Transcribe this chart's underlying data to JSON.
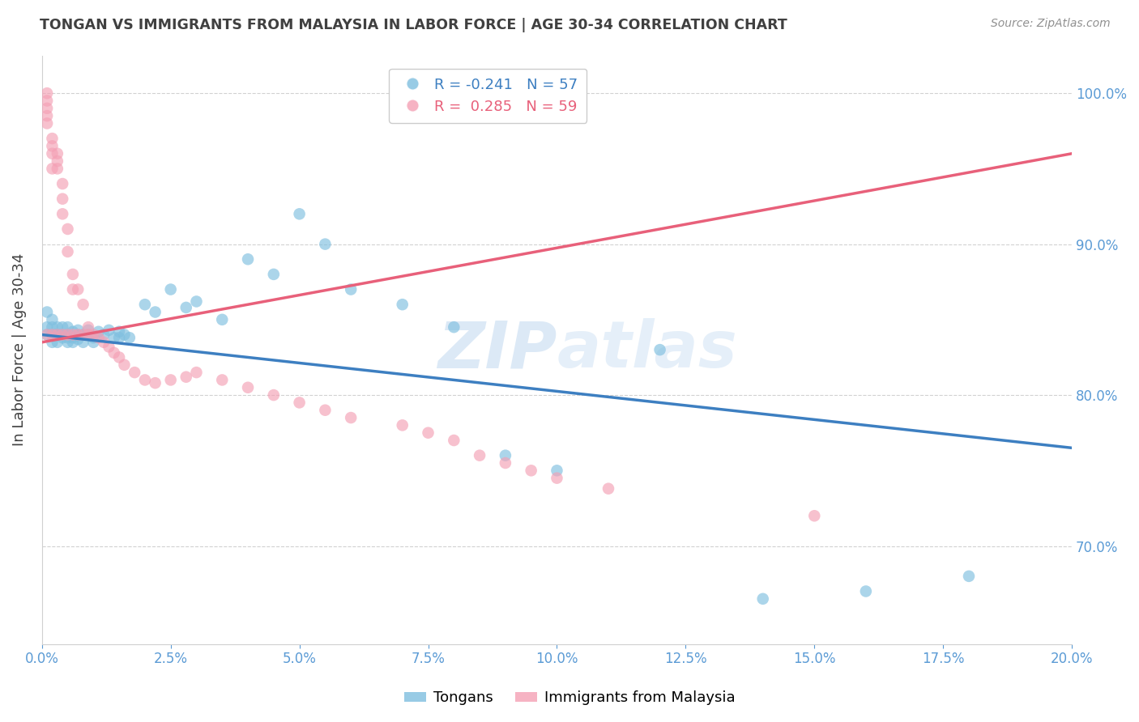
{
  "title": "TONGAN VS IMMIGRANTS FROM MALAYSIA IN LABOR FORCE | AGE 30-34 CORRELATION CHART",
  "source": "Source: ZipAtlas.com",
  "ylabel": "In Labor Force | Age 30-34",
  "legend_labels": [
    "Tongans",
    "Immigrants from Malaysia"
  ],
  "blue_R": -0.241,
  "blue_N": 57,
  "pink_R": 0.285,
  "pink_N": 59,
  "blue_color": "#7fbfdf",
  "pink_color": "#f4a0b5",
  "blue_line_color": "#3d7fc1",
  "pink_line_color": "#e8607a",
  "xmin": 0.0,
  "xmax": 0.2,
  "ymin": 0.635,
  "ymax": 1.025,
  "yticks": [
    0.7,
    0.8,
    0.9,
    1.0
  ],
  "xticks": [
    0.0,
    0.025,
    0.05,
    0.075,
    0.1,
    0.125,
    0.15,
    0.175,
    0.2
  ],
  "blue_scatter_x": [
    0.001,
    0.001,
    0.001,
    0.002,
    0.002,
    0.002,
    0.002,
    0.003,
    0.003,
    0.003,
    0.003,
    0.004,
    0.004,
    0.004,
    0.005,
    0.005,
    0.005,
    0.005,
    0.006,
    0.006,
    0.006,
    0.007,
    0.007,
    0.007,
    0.008,
    0.008,
    0.009,
    0.009,
    0.01,
    0.01,
    0.011,
    0.012,
    0.013,
    0.014,
    0.015,
    0.015,
    0.016,
    0.017,
    0.02,
    0.022,
    0.025,
    0.028,
    0.03,
    0.035,
    0.04,
    0.045,
    0.05,
    0.055,
    0.06,
    0.07,
    0.08,
    0.09,
    0.1,
    0.12,
    0.14,
    0.16,
    0.18
  ],
  "blue_scatter_y": [
    0.84,
    0.845,
    0.855,
    0.84,
    0.845,
    0.85,
    0.835,
    0.84,
    0.845,
    0.84,
    0.835,
    0.84,
    0.845,
    0.838,
    0.84,
    0.845,
    0.835,
    0.838,
    0.842,
    0.838,
    0.835,
    0.84,
    0.843,
    0.837,
    0.84,
    0.835,
    0.84,
    0.843,
    0.838,
    0.835,
    0.842,
    0.84,
    0.843,
    0.838,
    0.842,
    0.838,
    0.84,
    0.838,
    0.86,
    0.855,
    0.87,
    0.858,
    0.862,
    0.85,
    0.89,
    0.88,
    0.92,
    0.9,
    0.87,
    0.86,
    0.845,
    0.76,
    0.75,
    0.83,
    0.665,
    0.67,
    0.68
  ],
  "pink_scatter_x": [
    0.001,
    0.001,
    0.001,
    0.001,
    0.001,
    0.001,
    0.002,
    0.002,
    0.002,
    0.002,
    0.002,
    0.003,
    0.003,
    0.003,
    0.003,
    0.004,
    0.004,
    0.004,
    0.004,
    0.005,
    0.005,
    0.005,
    0.006,
    0.006,
    0.006,
    0.007,
    0.007,
    0.008,
    0.008,
    0.009,
    0.009,
    0.01,
    0.011,
    0.012,
    0.013,
    0.014,
    0.015,
    0.016,
    0.018,
    0.02,
    0.022,
    0.025,
    0.028,
    0.03,
    0.035,
    0.04,
    0.045,
    0.05,
    0.055,
    0.06,
    0.07,
    0.075,
    0.08,
    0.085,
    0.09,
    0.095,
    0.1,
    0.11,
    0.15
  ],
  "pink_scatter_y": [
    1.0,
    0.995,
    0.99,
    0.985,
    0.98,
    0.84,
    0.97,
    0.965,
    0.96,
    0.95,
    0.84,
    0.96,
    0.955,
    0.95,
    0.84,
    0.94,
    0.93,
    0.92,
    0.84,
    0.91,
    0.895,
    0.84,
    0.88,
    0.87,
    0.84,
    0.87,
    0.84,
    0.86,
    0.84,
    0.845,
    0.84,
    0.84,
    0.838,
    0.835,
    0.832,
    0.828,
    0.825,
    0.82,
    0.815,
    0.81,
    0.808,
    0.81,
    0.812,
    0.815,
    0.81,
    0.805,
    0.8,
    0.795,
    0.79,
    0.785,
    0.78,
    0.775,
    0.77,
    0.76,
    0.755,
    0.75,
    0.745,
    0.738,
    0.72
  ],
  "background_color": "#ffffff",
  "grid_color": "#cccccc",
  "tick_label_color": "#5b9bd5",
  "title_color": "#404040",
  "watermark_color": "#c0d8f0",
  "watermark_alpha": 0.6
}
